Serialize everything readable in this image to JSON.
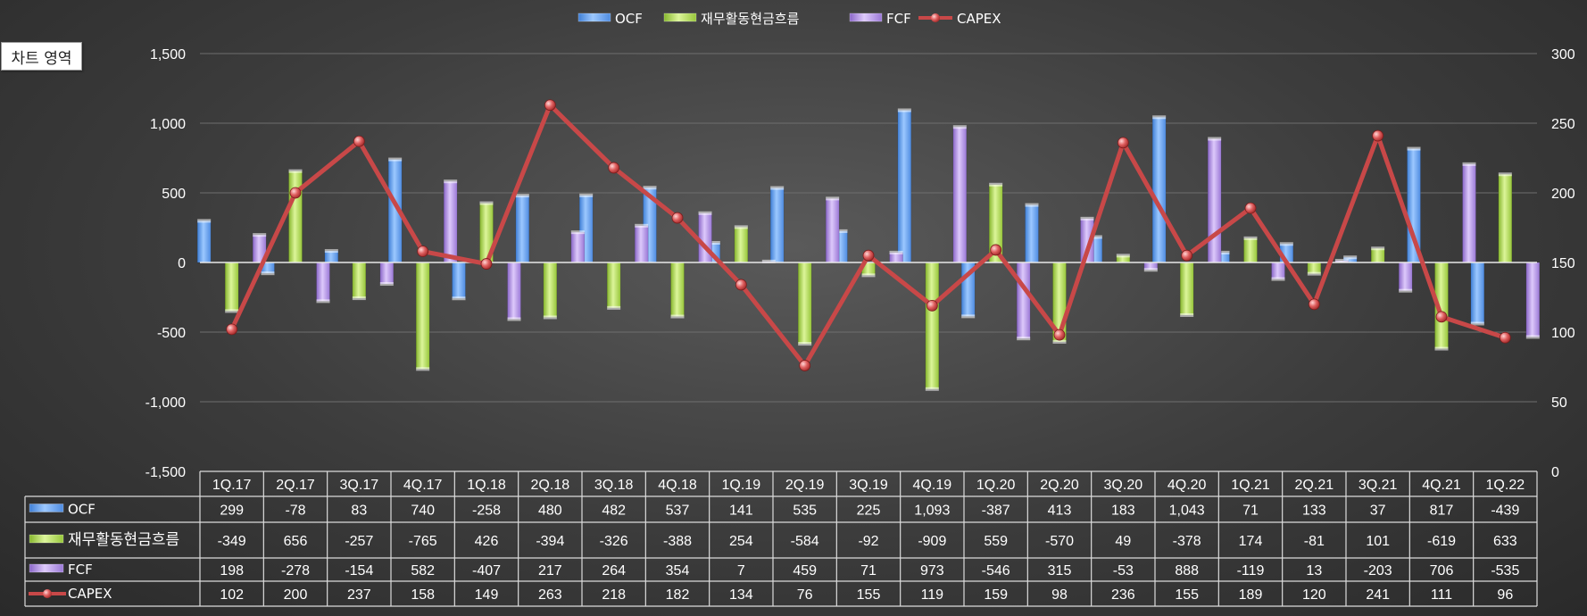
{
  "chart_area_label": "차트 영역",
  "chart_data": {
    "type": "bar",
    "categories": [
      "1Q.17",
      "2Q.17",
      "3Q.17",
      "4Q.17",
      "1Q.18",
      "2Q.18",
      "3Q.18",
      "4Q.18",
      "1Q.19",
      "2Q.19",
      "3Q.19",
      "4Q.19",
      "1Q.20",
      "2Q.20",
      "3Q.20",
      "4Q.20",
      "1Q.21",
      "2Q.21",
      "3Q.21",
      "4Q.21",
      "1Q.22"
    ],
    "series": [
      {
        "name": "OCF",
        "type": "bar",
        "axis": "left",
        "color": "#6aaaf5",
        "values": [
          299,
          -78,
          83,
          740,
          -258,
          480,
          482,
          537,
          141,
          535,
          225,
          1093,
          -387,
          413,
          183,
          1043,
          71,
          133,
          37,
          817,
          -439
        ],
        "labels": [
          "299",
          "-78",
          "83",
          "740",
          "-258",
          "480",
          "482",
          "537",
          "141",
          "535",
          "225",
          "1,093",
          "-387",
          "413",
          "183",
          "1,043",
          "71",
          "133",
          "37",
          "817",
          "-439"
        ]
      },
      {
        "name": "재무활동현금흐름",
        "type": "bar",
        "axis": "left",
        "color": "#b6e05a",
        "values": [
          -349,
          656,
          -257,
          -765,
          426,
          -394,
          -326,
          -388,
          254,
          -584,
          -92,
          -909,
          559,
          -570,
          49,
          -378,
          174,
          -81,
          101,
          -619,
          633
        ],
        "labels": [
          "-349",
          "656",
          "-257",
          "-765",
          "426",
          "-394",
          "-326",
          "-388",
          "254",
          "-584",
          "-92",
          "-909",
          "559",
          "-570",
          "49",
          "-378",
          "174",
          "-81",
          "101",
          "-619",
          "633"
        ]
      },
      {
        "name": "FCF",
        "type": "bar",
        "axis": "left",
        "color": "#b795e8",
        "values": [
          198,
          -278,
          -154,
          582,
          -407,
          217,
          264,
          354,
          7,
          459,
          71,
          973,
          -546,
          315,
          -53,
          888,
          -119,
          13,
          -203,
          706,
          -535
        ],
        "labels": [
          "198",
          "-278",
          "-154",
          "582",
          "-407",
          "217",
          "264",
          "354",
          "7",
          "459",
          "71",
          "973",
          "-546",
          "315",
          "-53",
          "888",
          "-119",
          "13",
          "-203",
          "706",
          "-535"
        ]
      },
      {
        "name": "CAPEX",
        "type": "line",
        "axis": "right",
        "color": "#c84848",
        "values": [
          102,
          200,
          237,
          158,
          149,
          263,
          218,
          182,
          134,
          76,
          155,
          119,
          159,
          98,
          236,
          155,
          189,
          120,
          241,
          111,
          96
        ],
        "labels": [
          "102",
          "200",
          "237",
          "158",
          "149",
          "263",
          "218",
          "182",
          "134",
          "76",
          "155",
          "119",
          "159",
          "98",
          "236",
          "155",
          "189",
          "120",
          "241",
          "111",
          "96"
        ]
      }
    ],
    "y_left": {
      "min": -1500,
      "max": 1500,
      "ticks": [
        "1,500",
        "1,000",
        "500",
        "0",
        "-500",
        "-1,000",
        "-1,500"
      ],
      "tick_values": [
        1500,
        1000,
        500,
        0,
        -500,
        -1000,
        -1500
      ]
    },
    "y_right": {
      "min": 0,
      "max": 300,
      "ticks": [
        "300",
        "250",
        "200",
        "150",
        "100",
        "50",
        "0"
      ],
      "tick_values": [
        300,
        250,
        200,
        150,
        100,
        50,
        0
      ]
    },
    "legend_position": "top-center",
    "data_table": true,
    "grid": true
  }
}
